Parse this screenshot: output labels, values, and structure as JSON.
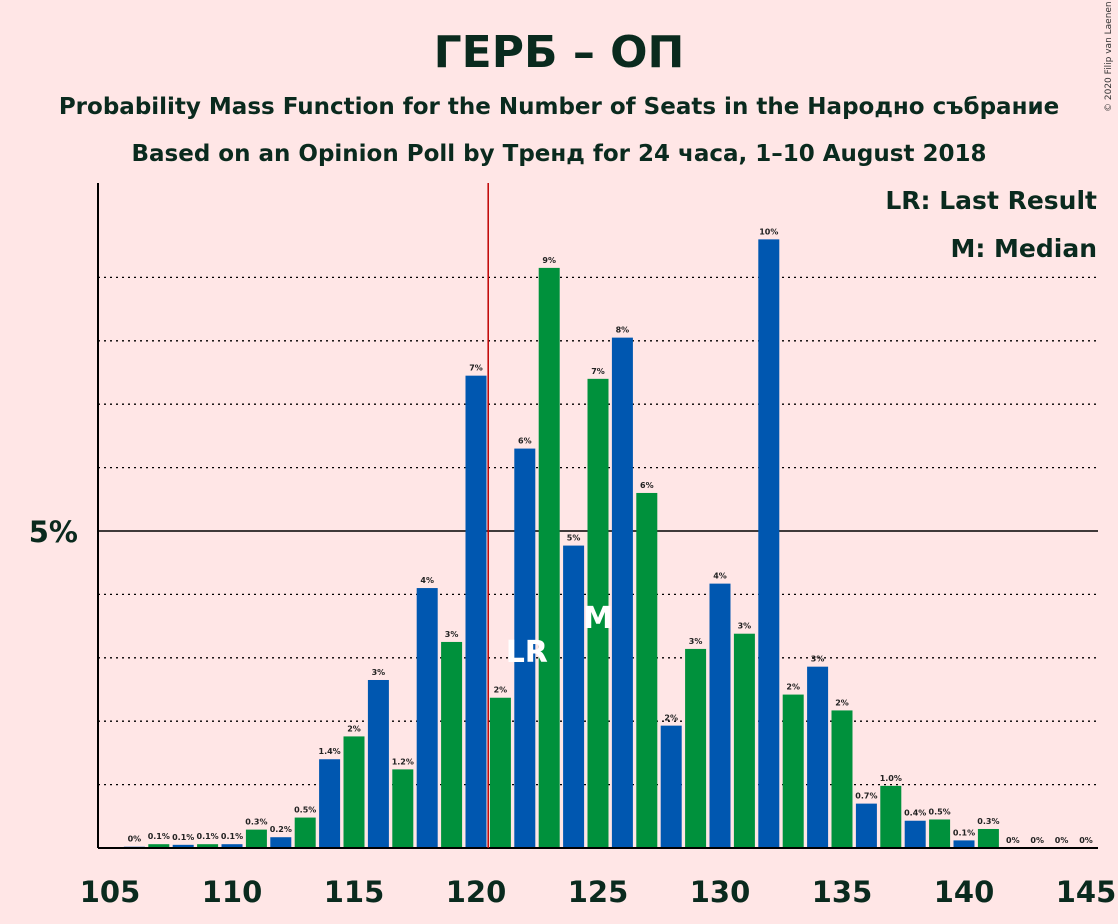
{
  "title": "ГЕРБ – ОП",
  "subtitle": "Probability Mass Function for the Number of Seats in the Народно събрание",
  "subtitle2": "Based on an Opinion Poll by Тренд for 24 часа, 1–10 August 2018",
  "copyright": "© 2020 Filip van Laenen",
  "legend": {
    "lr": "LR: Last Result",
    "m": "M: Median"
  },
  "markers": {
    "lr": "LR",
    "m": "M"
  },
  "colors": {
    "background": "#FFE6E6",
    "blue": "#0057B0",
    "green": "#00913C",
    "last_result_line": "#C00000",
    "grid": "#000000"
  },
  "chart_data": {
    "type": "bar",
    "x": [
      106,
      107,
      108,
      109,
      110,
      111,
      112,
      113,
      114,
      115,
      116,
      117,
      118,
      119,
      120,
      121,
      122,
      123,
      124,
      125,
      126,
      127,
      128,
      129,
      130,
      131,
      132,
      133,
      134,
      135,
      136,
      137,
      138,
      139,
      140,
      141,
      142,
      143,
      144,
      145
    ],
    "values": [
      0.02,
      0.06,
      0.05,
      0.06,
      0.06,
      0.29,
      0.17,
      0.48,
      1.4,
      1.76,
      2.65,
      1.24,
      4.1,
      3.25,
      7.45,
      2.37,
      6.3,
      9.15,
      4.77,
      7.4,
      8.05,
      5.6,
      1.93,
      3.14,
      4.17,
      3.38,
      9.6,
      2.42,
      2.86,
      2.17,
      0.7,
      0.98,
      0.43,
      0.45,
      0.12,
      0.3,
      0,
      0,
      0,
      0
    ],
    "labels": [
      "0%",
      "0.1%",
      "0.1%",
      "0.1%",
      "0.1%",
      "0.3%",
      "0.2%",
      "0.5%",
      "1.4%",
      "2%",
      "3%",
      "1.2%",
      "4%",
      "3%",
      "7%",
      "2%",
      "6%",
      "9%",
      "5%",
      "7%",
      "8%",
      "6%",
      "2%",
      "3%",
      "4%",
      "3%",
      "10%",
      "2%",
      "3%",
      "2%",
      "0.7%",
      "1.0%",
      "0.4%",
      "0.5%",
      "0.1%",
      "0.3%",
      "0%",
      "0%",
      "0%",
      "0%"
    ],
    "x_ticks": [
      "105",
      "110",
      "115",
      "120",
      "125",
      "130",
      "135",
      "140",
      "145"
    ],
    "y_ticks": [
      "5%"
    ],
    "xlim": [
      105,
      145
    ],
    "ylim": [
      0,
      10.5
    ],
    "last_result": 121,
    "last_result_label_seat": 122,
    "median": 125,
    "grid": true,
    "legend_position": "top-right"
  }
}
